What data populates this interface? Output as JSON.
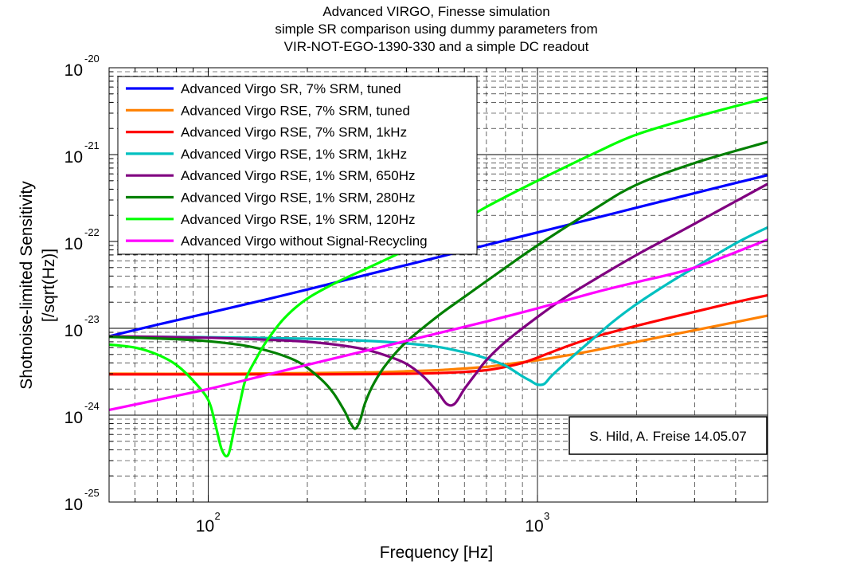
{
  "chart_data": {
    "type": "line",
    "title": [
      "Advanced VIRGO, Finesse simulation",
      "simple SR comparison using dummy parameters from",
      "VIR-NOT-EGO-1390-330 and a simple DC readout"
    ],
    "xlabel": "Frequency [Hz]",
    "ylabel": [
      "Shotnoise-limited Sensitivity",
      "[/sqrt(Hz)]"
    ],
    "xscale": "log",
    "yscale": "log",
    "xlim": [
      50,
      5000
    ],
    "ylim": [
      1e-25,
      1e-20
    ],
    "xticks": [
      {
        "value": 100,
        "base": "10",
        "exp": "2"
      },
      {
        "value": 1000,
        "base": "10",
        "exp": "3"
      }
    ],
    "yticks": [
      {
        "value": 1e-25,
        "base": "10",
        "exp": "-25"
      },
      {
        "value": 1e-24,
        "base": "10",
        "exp": "-24"
      },
      {
        "value": 1e-23,
        "base": "10",
        "exp": "-23"
      },
      {
        "value": 1e-22,
        "base": "10",
        "exp": "-22"
      },
      {
        "value": 1e-21,
        "base": "10",
        "exp": "-21"
      },
      {
        "value": 1e-20,
        "base": "10",
        "exp": "-20"
      }
    ],
    "grid": true,
    "legend_position": "top-left",
    "annotation": "S. Hild, A. Freise 14.05.07",
    "series": [
      {
        "name": "Advanced Virgo SR, 7% SRM, tuned",
        "color": "#0000ff",
        "x": [
          50,
          70,
          100,
          150,
          200,
          300,
          500,
          700,
          1000,
          1500,
          2000,
          3000,
          5000
        ],
        "y": [
          8.1e-24,
          1.1e-23,
          1.5e-23,
          2.15e-23,
          2.8e-23,
          4.1e-23,
          6.6e-23,
          9.1e-23,
          1.27e-22,
          1.86e-22,
          2.45e-22,
          3.6e-22,
          5.8e-22
        ]
      },
      {
        "name": "Advanced Virgo RSE, 7% SRM, tuned",
        "color": "#ff8000",
        "x": [
          50,
          100,
          200,
          300,
          400,
          500,
          600,
          700,
          800,
          1000,
          1200,
          1500,
          2000,
          3000,
          4000,
          5000
        ],
        "y": [
          3e-24,
          3e-24,
          3.05e-24,
          3.1e-24,
          3.2e-24,
          3.3e-24,
          3.45e-24,
          3.6e-24,
          3.85e-24,
          4.3e-24,
          4.8e-24,
          5.6e-24,
          7e-24,
          9.5e-24,
          1.18e-23,
          1.4e-23
        ]
      },
      {
        "name": "Advanced Virgo RSE, 7% SRM, 1kHz",
        "color": "#ff0000",
        "x": [
          50,
          100,
          200,
          300,
          400,
          500,
          600,
          700,
          800,
          900,
          1000,
          1200,
          1500,
          2000,
          3000,
          4000,
          5000
        ],
        "y": [
          2.95e-24,
          2.95e-24,
          2.95e-24,
          2.97e-24,
          3e-24,
          3.05e-24,
          3.15e-24,
          3.3e-24,
          3.6e-24,
          4e-24,
          4.6e-24,
          6e-24,
          8e-24,
          1.07e-23,
          1.55e-23,
          2e-23,
          2.4e-23
        ]
      },
      {
        "name": "Advanced Virgo RSE, 1% SRM, 1kHz",
        "color": "#00c0c0",
        "x": [
          50,
          100,
          200,
          300,
          400,
          500,
          600,
          700,
          800,
          900,
          950,
          1000,
          1050,
          1100,
          1200,
          1300,
          1500,
          1700,
          2000,
          2500,
          3000,
          4000,
          5000
        ],
        "y": [
          8e-24,
          7.9e-24,
          7.6e-24,
          7.2e-24,
          6.7e-24,
          6.1e-24,
          5.3e-24,
          4.5e-24,
          3.7e-24,
          2.8e-24,
          2.5e-24,
          2.25e-24,
          2.3e-24,
          2.8e-24,
          3.8e-24,
          5e-24,
          8e-24,
          1.2e-23,
          1.9e-23,
          3.3e-23,
          5e-23,
          9.5e-23,
          1.45e-22
        ]
      },
      {
        "name": "Advanced Virgo RSE, 1% SRM, 650Hz",
        "color": "#800080",
        "x": [
          50,
          100,
          150,
          200,
          250,
          300,
          350,
          400,
          450,
          500,
          530,
          560,
          600,
          650,
          700,
          800,
          1000,
          1200,
          1500,
          2000,
          2500,
          3000,
          4000,
          5000
        ],
        "y": [
          8.1e-24,
          7.8e-24,
          7.4e-24,
          7e-24,
          6.4e-24,
          5.7e-24,
          4.8e-24,
          3.9e-24,
          2.8e-24,
          1.8e-24,
          1.35e-24,
          1.35e-24,
          2e-24,
          3e-24,
          4.3e-24,
          7e-24,
          1.35e-23,
          2.2e-23,
          3.7e-23,
          7e-23,
          1.1e-22,
          1.6e-22,
          2.9e-22,
          4.6e-22
        ]
      },
      {
        "name": "Advanced Virgo RSE, 1% SRM, 280Hz",
        "color": "#008000",
        "x": [
          50,
          80,
          100,
          130,
          160,
          190,
          220,
          240,
          260,
          270,
          280,
          290,
          300,
          320,
          350,
          400,
          500,
          600,
          800,
          1000,
          1500,
          2000,
          3000,
          5000
        ],
        "y": [
          8e-24,
          7.5e-24,
          7.1e-24,
          6.3e-24,
          5.2e-24,
          4e-24,
          2.6e-24,
          1.8e-24,
          1.1e-24,
          8.2e-25,
          7e-25,
          9e-25,
          1.4e-24,
          2.4e-24,
          4e-24,
          7e-24,
          1.4e-23,
          2.3e-23,
          5e-23,
          9e-23,
          2.4e-22,
          4.5e-22,
          8e-22,
          1.4e-21
        ]
      },
      {
        "name": "Advanced Virgo RSE, 1% SRM, 120Hz",
        "color": "#00ff00",
        "x": [
          50,
          60,
          70,
          80,
          90,
          100,
          105,
          110,
          115,
          120,
          125,
          130,
          140,
          150,
          170,
          200,
          250,
          300,
          400,
          500,
          700,
          1000,
          1500,
          2000,
          3000,
          5000
        ],
        "y": [
          6.5e-24,
          6e-24,
          5e-24,
          3.8e-24,
          2.5e-24,
          1.5e-24,
          8e-25,
          4e-25,
          3.5e-25,
          7e-25,
          1.4e-24,
          2.6e-24,
          4.5e-24,
          7e-24,
          1.3e-23,
          2.2e-23,
          3.5e-23,
          4.8e-23,
          8e-23,
          1.2e-22,
          2.5e-22,
          5e-22,
          1.05e-21,
          1.7e-21,
          2.7e-21,
          4.5e-21
        ]
      },
      {
        "name": "Advanced Virgo without Signal-Recycling",
        "color": "#ff00ff",
        "x": [
          50,
          70,
          100,
          150,
          200,
          300,
          500,
          700,
          1000,
          1500,
          2000,
          3000,
          5000
        ],
        "y": [
          1.15e-24,
          1.5e-24,
          2e-24,
          2.9e-24,
          3.8e-24,
          5.5e-24,
          8.8e-24,
          1.2e-23,
          1.7e-23,
          2.6e-23,
          3.4e-23,
          5e-23,
          1.05e-22
        ]
      }
    ]
  }
}
